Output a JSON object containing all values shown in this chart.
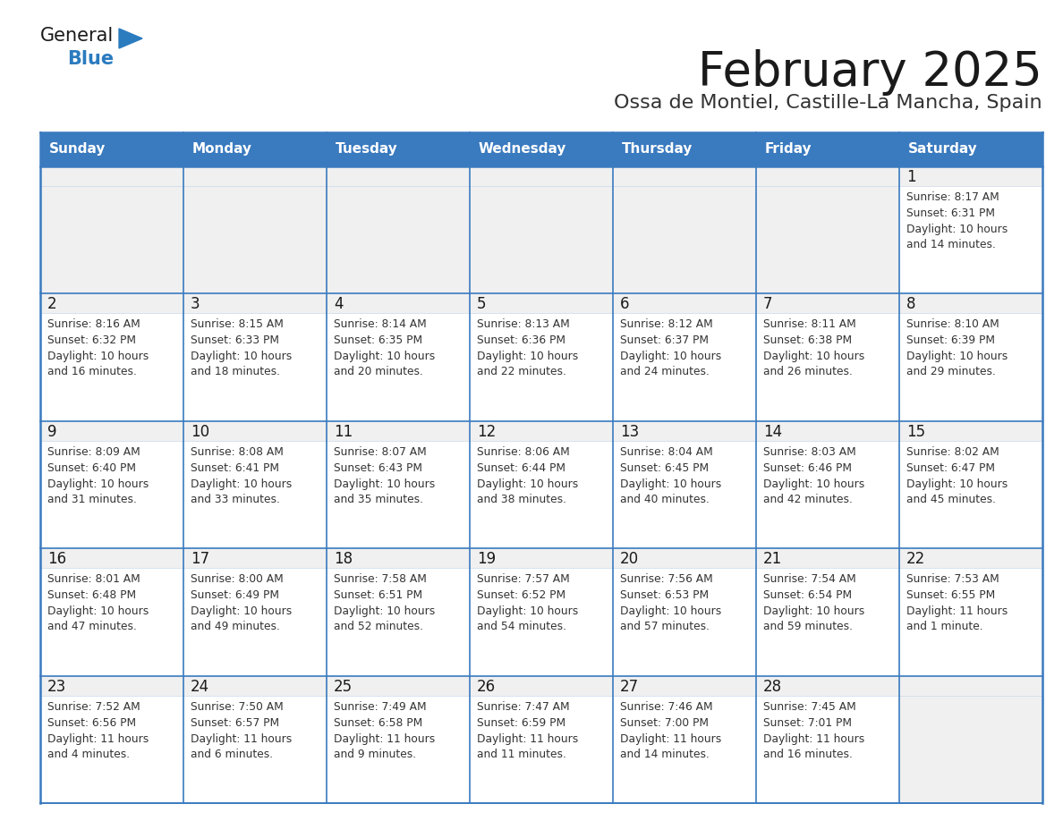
{
  "title": "February 2025",
  "subtitle": "Ossa de Montiel, Castille-La Mancha, Spain",
  "header_color": "#3a7abf",
  "header_text_color": "#ffffff",
  "cell_bg_color": "#ffffff",
  "cell_gray_bg": "#f0f0f0",
  "border_color": "#3a7abf",
  "border_light": "#c8d8e8",
  "day_names": [
    "Sunday",
    "Monday",
    "Tuesday",
    "Wednesday",
    "Thursday",
    "Friday",
    "Saturday"
  ],
  "title_color": "#1a1a1a",
  "subtitle_color": "#333333",
  "cell_text_color": "#333333",
  "day_num_color": "#1a1a1a",
  "logo_general_color": "#1a1a1a",
  "logo_blue_color": "#2b7bbf",
  "weeks": [
    [
      {
        "day": null,
        "sunrise": null,
        "sunset": null,
        "daylight": null
      },
      {
        "day": null,
        "sunrise": null,
        "sunset": null,
        "daylight": null
      },
      {
        "day": null,
        "sunrise": null,
        "sunset": null,
        "daylight": null
      },
      {
        "day": null,
        "sunrise": null,
        "sunset": null,
        "daylight": null
      },
      {
        "day": null,
        "sunrise": null,
        "sunset": null,
        "daylight": null
      },
      {
        "day": null,
        "sunrise": null,
        "sunset": null,
        "daylight": null
      },
      {
        "day": 1,
        "sunrise": "8:17 AM",
        "sunset": "6:31 PM",
        "daylight": "10 hours\nand 14 minutes."
      }
    ],
    [
      {
        "day": 2,
        "sunrise": "8:16 AM",
        "sunset": "6:32 PM",
        "daylight": "10 hours\nand 16 minutes."
      },
      {
        "day": 3,
        "sunrise": "8:15 AM",
        "sunset": "6:33 PM",
        "daylight": "10 hours\nand 18 minutes."
      },
      {
        "day": 4,
        "sunrise": "8:14 AM",
        "sunset": "6:35 PM",
        "daylight": "10 hours\nand 20 minutes."
      },
      {
        "day": 5,
        "sunrise": "8:13 AM",
        "sunset": "6:36 PM",
        "daylight": "10 hours\nand 22 minutes."
      },
      {
        "day": 6,
        "sunrise": "8:12 AM",
        "sunset": "6:37 PM",
        "daylight": "10 hours\nand 24 minutes."
      },
      {
        "day": 7,
        "sunrise": "8:11 AM",
        "sunset": "6:38 PM",
        "daylight": "10 hours\nand 26 minutes."
      },
      {
        "day": 8,
        "sunrise": "8:10 AM",
        "sunset": "6:39 PM",
        "daylight": "10 hours\nand 29 minutes."
      }
    ],
    [
      {
        "day": 9,
        "sunrise": "8:09 AM",
        "sunset": "6:40 PM",
        "daylight": "10 hours\nand 31 minutes."
      },
      {
        "day": 10,
        "sunrise": "8:08 AM",
        "sunset": "6:41 PM",
        "daylight": "10 hours\nand 33 minutes."
      },
      {
        "day": 11,
        "sunrise": "8:07 AM",
        "sunset": "6:43 PM",
        "daylight": "10 hours\nand 35 minutes."
      },
      {
        "day": 12,
        "sunrise": "8:06 AM",
        "sunset": "6:44 PM",
        "daylight": "10 hours\nand 38 minutes."
      },
      {
        "day": 13,
        "sunrise": "8:04 AM",
        "sunset": "6:45 PM",
        "daylight": "10 hours\nand 40 minutes."
      },
      {
        "day": 14,
        "sunrise": "8:03 AM",
        "sunset": "6:46 PM",
        "daylight": "10 hours\nand 42 minutes."
      },
      {
        "day": 15,
        "sunrise": "8:02 AM",
        "sunset": "6:47 PM",
        "daylight": "10 hours\nand 45 minutes."
      }
    ],
    [
      {
        "day": 16,
        "sunrise": "8:01 AM",
        "sunset": "6:48 PM",
        "daylight": "10 hours\nand 47 minutes."
      },
      {
        "day": 17,
        "sunrise": "8:00 AM",
        "sunset": "6:49 PM",
        "daylight": "10 hours\nand 49 minutes."
      },
      {
        "day": 18,
        "sunrise": "7:58 AM",
        "sunset": "6:51 PM",
        "daylight": "10 hours\nand 52 minutes."
      },
      {
        "day": 19,
        "sunrise": "7:57 AM",
        "sunset": "6:52 PM",
        "daylight": "10 hours\nand 54 minutes."
      },
      {
        "day": 20,
        "sunrise": "7:56 AM",
        "sunset": "6:53 PM",
        "daylight": "10 hours\nand 57 minutes."
      },
      {
        "day": 21,
        "sunrise": "7:54 AM",
        "sunset": "6:54 PM",
        "daylight": "10 hours\nand 59 minutes."
      },
      {
        "day": 22,
        "sunrise": "7:53 AM",
        "sunset": "6:55 PM",
        "daylight": "11 hours\nand 1 minute."
      }
    ],
    [
      {
        "day": 23,
        "sunrise": "7:52 AM",
        "sunset": "6:56 PM",
        "daylight": "11 hours\nand 4 minutes."
      },
      {
        "day": 24,
        "sunrise": "7:50 AM",
        "sunset": "6:57 PM",
        "daylight": "11 hours\nand 6 minutes."
      },
      {
        "day": 25,
        "sunrise": "7:49 AM",
        "sunset": "6:58 PM",
        "daylight": "11 hours\nand 9 minutes."
      },
      {
        "day": 26,
        "sunrise": "7:47 AM",
        "sunset": "6:59 PM",
        "daylight": "11 hours\nand 11 minutes."
      },
      {
        "day": 27,
        "sunrise": "7:46 AM",
        "sunset": "7:00 PM",
        "daylight": "11 hours\nand 14 minutes."
      },
      {
        "day": 28,
        "sunrise": "7:45 AM",
        "sunset": "7:01 PM",
        "daylight": "11 hours\nand 16 minutes."
      },
      {
        "day": null,
        "sunrise": null,
        "sunset": null,
        "daylight": null
      }
    ]
  ]
}
